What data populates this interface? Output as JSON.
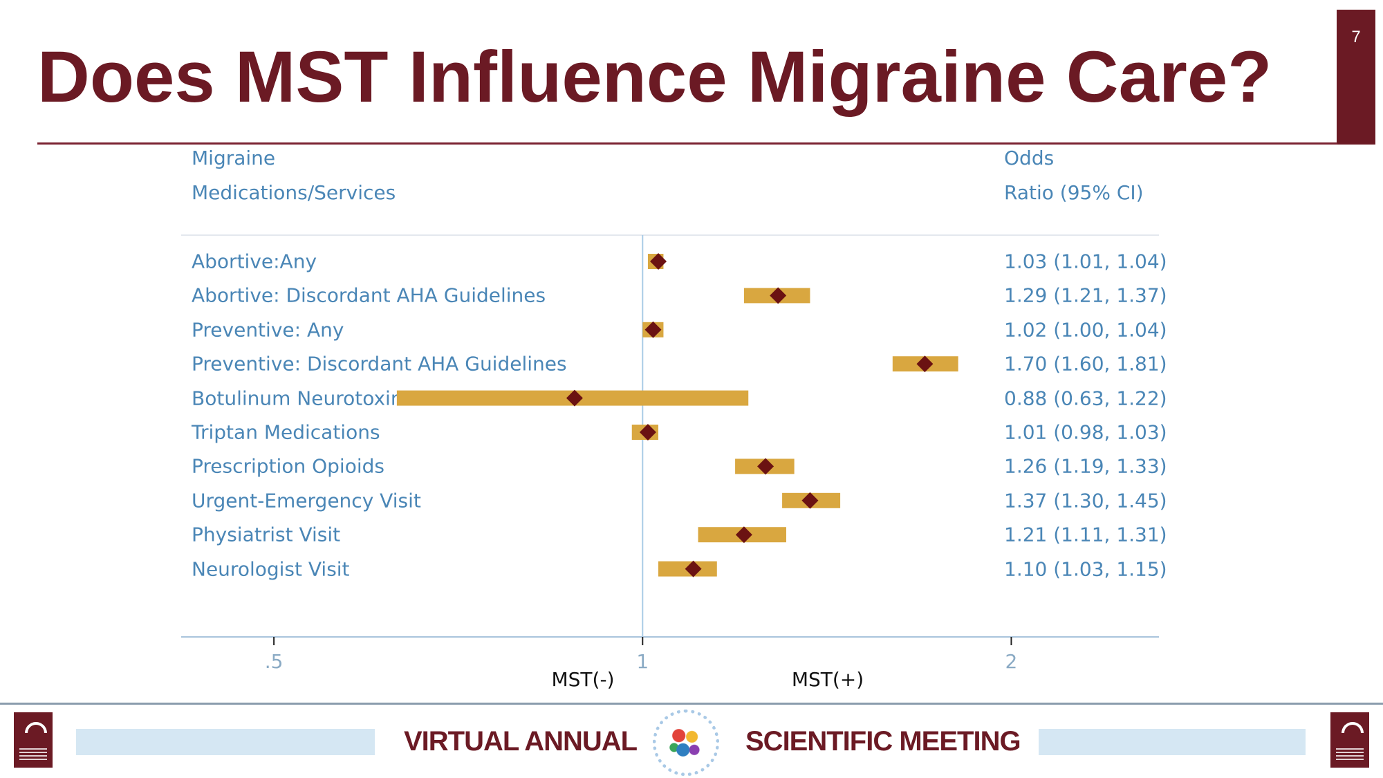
{
  "slide": {
    "title": "Does MST Influence Migraine Care?",
    "page_number": "7"
  },
  "headers": {
    "left_line1": "Migraine",
    "left_line2": "Medications/Services",
    "right_line1": "Odds",
    "right_line2": "Ratio (95% CI)"
  },
  "chart_data": {
    "type": "forest",
    "scale": "log",
    "reference_line": 1,
    "xlim": [
      0.42,
      2.64
    ],
    "ticks": [
      {
        "value": 0.5,
        "label": ".5"
      },
      {
        "value": 1,
        "label": "1"
      },
      {
        "value": 2,
        "label": "2"
      }
    ],
    "side_labels": {
      "left": "MST(-)",
      "right": "MST(+)"
    },
    "rows": [
      {
        "label": "Abortive:Any",
        "or": 1.03,
        "lo": 1.01,
        "hi": 1.04,
        "text": "1.03 (1.01, 1.04)"
      },
      {
        "label": "Abortive: Discordant AHA Guidelines",
        "or": 1.29,
        "lo": 1.21,
        "hi": 1.37,
        "text": "1.29 (1.21, 1.37)"
      },
      {
        "label": "Preventive: Any",
        "or": 1.02,
        "lo": 1.0,
        "hi": 1.04,
        "text": "1.02 (1.00, 1.04)"
      },
      {
        "label": "Preventive: Discordant AHA Guidelines",
        "or": 1.7,
        "lo": 1.6,
        "hi": 1.81,
        "text": "1.70 (1.60, 1.81)"
      },
      {
        "label": "Botulinum Neurotoxins",
        "or": 0.88,
        "lo": 0.63,
        "hi": 1.22,
        "text": "0.88 (0.63, 1.22)"
      },
      {
        "label": "Triptan Medications",
        "or": 1.01,
        "lo": 0.98,
        "hi": 1.03,
        "text": "1.01 (0.98, 1.03)"
      },
      {
        "label": "Prescription Opioids",
        "or": 1.26,
        "lo": 1.19,
        "hi": 1.33,
        "text": "1.26 (1.19, 1.33)"
      },
      {
        "label": "Urgent-Emergency Visit",
        "or": 1.37,
        "lo": 1.3,
        "hi": 1.45,
        "text": "1.37 (1.30, 1.45)"
      },
      {
        "label": "Physiatrist Visit",
        "or": 1.21,
        "lo": 1.11,
        "hi": 1.31,
        "text": "1.21 (1.11, 1.31)"
      },
      {
        "label": "Neurologist Visit",
        "or": 1.1,
        "lo": 1.03,
        "hi": 1.15,
        "text": "1.10 (1.03, 1.15)"
      }
    ],
    "colors": {
      "ci_bar": "#d9a740",
      "point": "#6b1212",
      "ref_line": "#a9cbe6",
      "axis": "#a9c4dc",
      "text": "#4a86b6"
    }
  },
  "footer": {
    "left_text": "VIRTUAL ANNUAL",
    "right_text": "SCIENTIFIC MEETING"
  }
}
